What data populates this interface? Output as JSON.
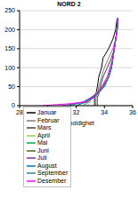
{
  "chart_data": {
    "type": "line",
    "title": "NORD 2",
    "x_label": "Saltholdighet",
    "xlim": [
      28,
      36
    ],
    "xticks": [
      28,
      30,
      32,
      34,
      36
    ],
    "ylim": [
      0,
      250
    ],
    "yticks": [
      0,
      50,
      100,
      150,
      200,
      250
    ],
    "grid": true,
    "legend": "lower left",
    "series": [
      {
        "name": "Januar",
        "color": "#000000",
        "depth": [
          0,
          5,
          10,
          20,
          30,
          50,
          75,
          100,
          125,
          150,
          175,
          200,
          230
        ],
        "values": [
          33.3,
          33.3,
          33.3,
          33.3,
          33.4,
          33.5,
          33.6,
          33.8,
          33.9,
          34.3,
          34.6,
          34.8,
          34.9
        ]
      },
      {
        "name": "Februar",
        "color": "#7f7f7f",
        "depth": [
          0,
          5,
          10,
          20,
          30,
          50,
          75,
          100,
          125,
          150,
          175,
          200,
          230
        ],
        "values": [
          33.4,
          33.4,
          33.4,
          33.4,
          33.5,
          33.6,
          33.8,
          34.0,
          34.3,
          34.6,
          34.8,
          34.9,
          34.95
        ]
      },
      {
        "name": "Mars",
        "color": "#404040",
        "depth": [
          0,
          5,
          10,
          20,
          30,
          50,
          75,
          100,
          125,
          150,
          175,
          200,
          230
        ],
        "values": [
          33.5,
          33.5,
          33.5,
          33.5,
          33.6,
          33.7,
          33.9,
          34.2,
          34.5,
          34.7,
          34.8,
          34.9,
          34.95
        ]
      },
      {
        "name": "April",
        "color": "#92d050",
        "depth": [
          0,
          5,
          10,
          20,
          30,
          50,
          75,
          100,
          125,
          150,
          175,
          200,
          230
        ],
        "values": [
          32.8,
          32.9,
          33.0,
          33.1,
          33.3,
          33.8,
          34.2,
          34.4,
          34.6,
          34.7,
          34.8,
          34.9,
          34.95
        ]
      },
      {
        "name": "Mai",
        "color": "#00b050",
        "depth": [
          0,
          5,
          10,
          20,
          30,
          50,
          75,
          100,
          125,
          150,
          175,
          200,
          230
        ],
        "values": [
          32.5,
          32.7,
          32.9,
          33.1,
          33.4,
          33.9,
          34.3,
          34.5,
          34.6,
          34.7,
          34.8,
          34.9,
          34.95
        ]
      },
      {
        "name": "Juni",
        "color": "#4f6228",
        "depth": [
          0,
          5,
          10,
          20,
          30,
          50,
          75,
          100,
          125,
          150,
          175,
          200,
          230
        ],
        "values": [
          32.0,
          32.3,
          32.7,
          33.0,
          33.4,
          33.9,
          34.3,
          34.5,
          34.6,
          34.7,
          34.8,
          34.9,
          34.95
        ]
      },
      {
        "name": "Juli",
        "color": "#7030a0",
        "depth": [
          0,
          5,
          10,
          20,
          30,
          50,
          75,
          100,
          125,
          150,
          175,
          200,
          230
        ],
        "values": [
          31.0,
          31.8,
          32.5,
          33.0,
          33.4,
          33.9,
          34.3,
          34.5,
          34.6,
          34.7,
          34.8,
          34.9,
          34.95
        ]
      },
      {
        "name": "August",
        "color": "#0070c0",
        "depth": [
          0,
          5,
          10,
          20,
          30,
          50,
          75,
          100,
          125,
          150,
          175,
          200,
          230
        ],
        "values": [
          31.5,
          32.0,
          32.6,
          33.1,
          33.5,
          34.0,
          34.3,
          34.5,
          34.6,
          34.7,
          34.8,
          34.9,
          34.95
        ]
      },
      {
        "name": "September",
        "color": "#31859c",
        "depth": [
          0,
          5,
          10,
          20,
          30,
          50,
          75,
          100,
          125,
          150,
          175,
          200,
          230
        ],
        "values": [
          32.0,
          32.4,
          32.8,
          33.2,
          33.5,
          34.0,
          34.3,
          34.5,
          34.6,
          34.7,
          34.8,
          34.9,
          34.95
        ]
      },
      {
        "name": "Desember",
        "color": "#ff00ff",
        "depth": [
          0,
          5,
          10,
          20,
          30,
          50,
          75,
          100,
          125,
          150,
          175,
          200,
          230
        ],
        "values": [
          29.6,
          31.5,
          32.8,
          33.2,
          33.4,
          33.8,
          34.2,
          34.4,
          34.6,
          34.7,
          34.8,
          34.9,
          34.95
        ]
      }
    ]
  }
}
